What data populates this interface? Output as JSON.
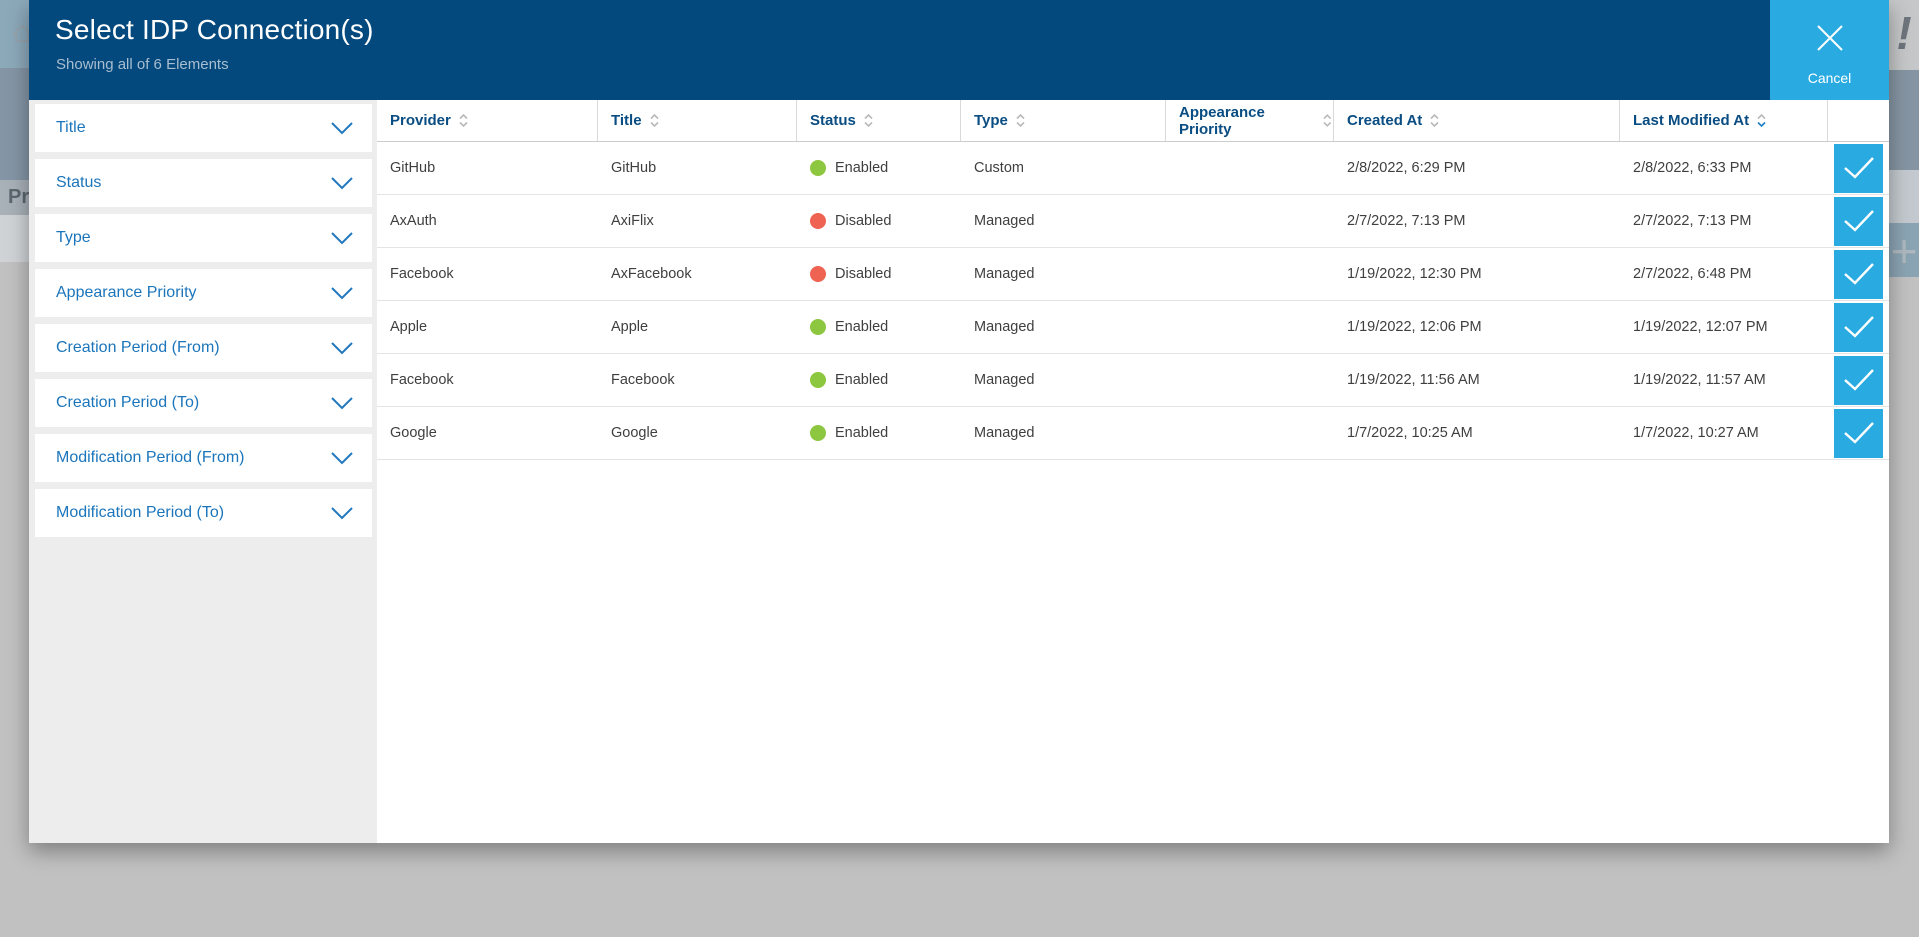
{
  "background": {
    "page_title_partial": "Pro",
    "exclamation_mark": "!",
    "plus_sign": "+"
  },
  "modal": {
    "title": "Select IDP Connection(s)",
    "subtitle": "Showing all of 6 Elements",
    "cancel_label": "Cancel",
    "filters": [
      {
        "label": "Title"
      },
      {
        "label": "Status"
      },
      {
        "label": "Type"
      },
      {
        "label": "Appearance Priority"
      },
      {
        "label": "Creation Period (From)"
      },
      {
        "label": "Creation Period (To)"
      },
      {
        "label": "Modification Period (From)"
      },
      {
        "label": "Modification Period (To)"
      }
    ],
    "table": {
      "columns": [
        {
          "label": "Provider",
          "sort": "none"
        },
        {
          "label": "Title",
          "sort": "none"
        },
        {
          "label": "Status",
          "sort": "none"
        },
        {
          "label": "Type",
          "sort": "none"
        },
        {
          "label": "Appearance Priority",
          "sort": "none"
        },
        {
          "label": "Created At",
          "sort": "none"
        },
        {
          "label": "Last Modified At",
          "sort": "desc"
        }
      ],
      "rows": [
        {
          "provider": "GitHub",
          "title": "GitHub",
          "status": "Enabled",
          "type": "Custom",
          "appearance_priority": "",
          "created_at": "2/8/2022, 6:29 PM",
          "last_modified_at": "2/8/2022, 6:33 PM",
          "selected": true
        },
        {
          "provider": "AxAuth",
          "title": "AxiFlix",
          "status": "Disabled",
          "type": "Managed",
          "appearance_priority": "",
          "created_at": "2/7/2022, 7:13 PM",
          "last_modified_at": "2/7/2022, 7:13 PM",
          "selected": true
        },
        {
          "provider": "Facebook",
          "title": "AxFacebook",
          "status": "Disabled",
          "type": "Managed",
          "appearance_priority": "",
          "created_at": "1/19/2022, 12:30 PM",
          "last_modified_at": "2/7/2022, 6:48 PM",
          "selected": true
        },
        {
          "provider": "Apple",
          "title": "Apple",
          "status": "Enabled",
          "type": "Managed",
          "appearance_priority": "",
          "created_at": "1/19/2022, 12:06 PM",
          "last_modified_at": "1/19/2022, 12:07 PM",
          "selected": true
        },
        {
          "provider": "Facebook",
          "title": "Facebook",
          "status": "Enabled",
          "type": "Managed",
          "appearance_priority": "",
          "created_at": "1/19/2022, 11:56 AM",
          "last_modified_at": "1/19/2022, 11:57 AM",
          "selected": true
        },
        {
          "provider": "Google",
          "title": "Google",
          "status": "Enabled",
          "type": "Managed",
          "appearance_priority": "",
          "created_at": "1/7/2022, 10:25 AM",
          "last_modified_at": "1/7/2022, 10:27 AM",
          "selected": true
        }
      ]
    }
  },
  "colors": {
    "header_navy": "#03497D",
    "accent_blue": "#29ABE2",
    "enabled_green": "#8DC63F",
    "disabled_red": "#EE6352",
    "link_blue": "#1B75BB"
  }
}
